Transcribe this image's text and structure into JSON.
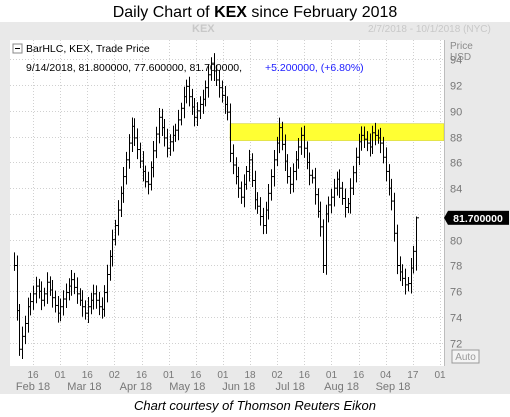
{
  "page": {
    "title_prefix": "Daily Chart of ",
    "title_ticker": "KEX",
    "title_suffix": " since February 2018",
    "credit": "Chart courtesy of Thomson Reuters Eikon"
  },
  "colors": {
    "frame_bg": "#e9e9e9",
    "plot_bg": "#ffffff",
    "grid": "#d0d0d0",
    "bars": "#000000",
    "highlight": "#ffff33",
    "highlight_border": "#c8c800",
    "axis_text": "#777777",
    "watermark": "#c8c8c8",
    "change_text": "#1a1aff"
  },
  "chart_data": {
    "type": "ohlc",
    "symbol_label": "KEX",
    "date_range_label": "2/7/2018 - 10/1/2018 (NYC)",
    "axis_title": [
      "Price",
      "USD"
    ],
    "legend": {
      "series": "BarHLC, KEX, Trade Price",
      "values": "9/14/2018, 81.800000, 77.600000, 81.700000,",
      "change": "+5.200000, (+6.80%)"
    },
    "last_price_label": "81.700000",
    "last_price": 81.7,
    "y_ticks": [
      72,
      74,
      76,
      78,
      80,
      82,
      84,
      86,
      88,
      90,
      92,
      94
    ],
    "ylim": [
      70.2,
      95.5
    ],
    "day_ticks": [
      "16",
      "01",
      "16",
      "02",
      "16",
      "01",
      "16",
      "01",
      "18",
      "02",
      "16",
      "01",
      "16",
      "04",
      "17",
      "01"
    ],
    "months": [
      "Feb 18",
      "Mar 18",
      "Apr 18",
      "May 18",
      "Jun 18",
      "Jul 18",
      "Aug 18",
      "Sep 18"
    ],
    "highlight_band": [
      87.7,
      89.0
    ],
    "auto_button": "Auto",
    "closes": [
      78.0,
      74.5,
      71.5,
      72.5,
      73.5,
      74.8,
      75.2,
      75.8,
      76.4,
      76.0,
      75.3,
      75.8,
      76.7,
      76.1,
      75.5,
      74.9,
      74.3,
      74.8,
      75.4,
      75.9,
      76.4,
      76.9,
      76.3,
      75.8,
      75.3,
      74.8,
      74.3,
      74.8,
      75.3,
      75.8,
      75.3,
      74.8,
      74.6,
      75.9,
      77.3,
      78.7,
      80.0,
      81.1,
      82.3,
      83.6,
      84.9,
      86.2,
      87.5,
      88.8,
      87.9,
      87.0,
      86.1,
      85.3,
      84.5,
      84.3,
      85.6,
      86.9,
      88.2,
      89.5,
      88.7,
      87.9,
      87.1,
      87.6,
      88.1,
      88.5,
      89.3,
      90.2,
      91.1,
      91.9,
      91.1,
      90.3,
      89.5,
      90.0,
      90.5,
      90.9,
      91.8,
      92.8,
      93.7,
      93.1,
      92.4,
      91.8,
      91.2,
      90.5,
      89.9,
      86.7,
      85.8,
      84.9,
      84.0,
      83.3,
      84.3,
      85.3,
      86.2,
      84.6,
      83.1,
      82.6,
      81.8,
      81.1,
      82.3,
      83.6,
      84.9,
      86.2,
      87.5,
      88.7,
      87.4,
      86.1,
      84.9,
      84.3,
      85.3,
      86.2,
      87.2,
      88.1,
      87.1,
      86.0,
      85.0,
      84.8,
      83.5,
      82.2,
      81.0,
      78.0,
      82.0,
      82.7,
      83.3,
      84.0,
      84.7,
      84.0,
      83.2,
      82.5,
      82.8,
      84.0,
      85.2,
      86.4,
      87.6,
      88.1,
      87.8,
      87.5,
      87.2,
      88.3,
      88.1,
      87.9,
      87.5,
      86.4,
      85.3,
      84.0,
      83.0,
      80.5,
      78.0,
      77.5,
      77.0,
      76.5,
      76.6,
      77.8,
      79.1,
      81.7
    ]
  }
}
